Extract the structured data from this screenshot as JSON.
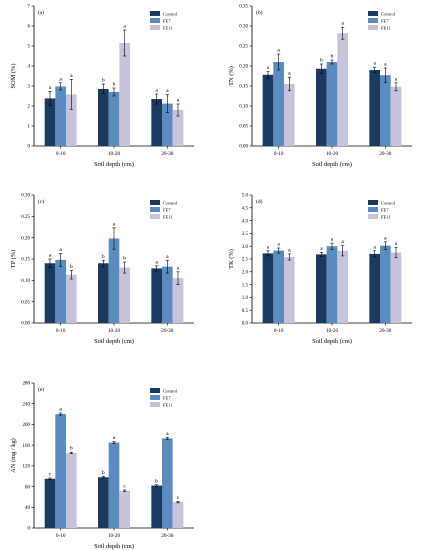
{
  "colors": [
    "#1b3a5f",
    "#5b8bbf",
    "#c7c3da"
  ],
  "chart_data": [
    {
      "type": "bar",
      "panel": "(a)",
      "xlabel": "Soil depth (cm)",
      "ylabel": "SOM (%)",
      "ylim": [
        0,
        7
      ],
      "yticks": [
        0,
        1,
        2,
        3,
        4,
        5,
        6,
        7
      ],
      "ytick_labels": [
        "0",
        "1",
        "2",
        "3",
        "4",
        "5",
        "6",
        "7"
      ],
      "categories": [
        "0-10",
        "10-20",
        "20-30"
      ],
      "legend": "top-right",
      "series": [
        {
          "name": "Control",
          "values": [
            2.38,
            2.85,
            2.35
          ],
          "errors": [
            0.35,
            0.25,
            0.25
          ],
          "letters": [
            "a",
            "b",
            "a"
          ]
        },
        {
          "name": "FE7",
          "values": [
            2.98,
            2.7,
            2.12
          ],
          "errors": [
            0.18,
            0.2,
            0.45
          ],
          "letters": [
            "a",
            "b",
            "a"
          ]
        },
        {
          "name": "FE11",
          "values": [
            2.58,
            5.15,
            1.8
          ],
          "errors": [
            0.75,
            0.65,
            0.3
          ],
          "letters": [
            "a",
            "a",
            "a"
          ]
        }
      ]
    },
    {
      "type": "bar",
      "panel": "(b)",
      "xlabel": "Soil depth (cm)",
      "ylabel": "TN (%)",
      "ylim": [
        0,
        0.35
      ],
      "yticks": [
        0,
        0.05,
        0.1,
        0.15,
        0.2,
        0.25,
        0.3,
        0.35
      ],
      "ytick_labels": [
        "0.00",
        "0.05",
        "0.10",
        "0.15",
        "0.20",
        "0.25",
        "0.30",
        "0.35"
      ],
      "categories": [
        "0-10",
        "10-20",
        "20-30"
      ],
      "legend": "top-right",
      "series": [
        {
          "name": "Control",
          "values": [
            0.178,
            0.193,
            0.19
          ],
          "errors": [
            0.008,
            0.012,
            0.007
          ],
          "letters": [
            "a",
            "b",
            "a"
          ]
        },
        {
          "name": "FE7",
          "values": [
            0.21,
            0.21,
            0.177
          ],
          "errors": [
            0.02,
            0.005,
            0.018
          ],
          "letters": [
            "a",
            "b",
            "a"
          ]
        },
        {
          "name": "FE11",
          "values": [
            0.155,
            0.282,
            0.148
          ],
          "errors": [
            0.017,
            0.015,
            0.01
          ],
          "letters": [
            "a",
            "a",
            "a"
          ]
        }
      ]
    },
    {
      "type": "bar",
      "panel": "(c)",
      "xlabel": "Soil depth (cm)",
      "ylabel": "TP (%)",
      "ylim": [
        0,
        0.3
      ],
      "yticks": [
        0,
        0.05,
        0.1,
        0.15,
        0.2,
        0.25,
        0.3
      ],
      "ytick_labels": [
        "0.00",
        "0.05",
        "0.10",
        "0.15",
        "0.20",
        "0.25",
        "0.30"
      ],
      "categories": [
        "0-10",
        "10-20",
        "20-30"
      ],
      "legend": "top-right",
      "series": [
        {
          "name": "Control",
          "values": [
            0.14,
            0.14,
            0.128
          ],
          "errors": [
            0.01,
            0.007,
            0.006
          ],
          "letters": [
            "a",
            "b",
            "a"
          ]
        },
        {
          "name": "FE7",
          "values": [
            0.148,
            0.198,
            0.132
          ],
          "errors": [
            0.015,
            0.025,
            0.015
          ],
          "letters": [
            "a",
            "a",
            "a"
          ]
        },
        {
          "name": "FE11",
          "values": [
            0.113,
            0.13,
            0.105
          ],
          "errors": [
            0.01,
            0.013,
            0.015
          ],
          "letters": [
            "b",
            "b",
            "a"
          ]
        }
      ]
    },
    {
      "type": "bar",
      "panel": "(d)",
      "xlabel": "Soil depth (cm)",
      "ylabel": "TK (%)",
      "ylim": [
        0,
        5
      ],
      "yticks": [
        0,
        0.5,
        1,
        1.5,
        2,
        2.5,
        3,
        3.5,
        4,
        4.5,
        5
      ],
      "ytick_labels": [
        "0.0",
        "0.5",
        "1.0",
        "1.5",
        "2.0",
        "2.5",
        "3.0",
        "3.5",
        "4.0",
        "4.5",
        "5.0"
      ],
      "categories": [
        "0-10",
        "10-20",
        "20-30"
      ],
      "legend": "top-right",
      "series": [
        {
          "name": "Control",
          "values": [
            2.72,
            2.68,
            2.7
          ],
          "errors": [
            0.1,
            0.08,
            0.12
          ],
          "letters": [
            "a",
            "a",
            "a"
          ]
        },
        {
          "name": "FE7",
          "values": [
            2.83,
            3.0,
            3.02
          ],
          "errors": [
            0.1,
            0.12,
            0.15
          ],
          "letters": [
            "a",
            "a",
            "a"
          ]
        },
        {
          "name": "FE11",
          "values": [
            2.58,
            2.82,
            2.75
          ],
          "errors": [
            0.12,
            0.2,
            0.2
          ],
          "letters": [
            "a",
            "a",
            "a"
          ]
        }
      ]
    },
    {
      "type": "bar",
      "panel": "(e)",
      "xlabel": "Soil depth (cm)",
      "ylabel": "AN (mg / kg)",
      "ylim": [
        0,
        280
      ],
      "yticks": [
        0,
        40,
        80,
        120,
        160,
        200,
        240,
        280
      ],
      "ytick_labels": [
        "0",
        "40",
        "80",
        "120",
        "160",
        "200",
        "240",
        "280"
      ],
      "categories": [
        "0-10",
        "10-20",
        "20-30"
      ],
      "legend": "top-right",
      "series": [
        {
          "name": "Control",
          "values": [
            95,
            98,
            82
          ],
          "errors": [
            1.5,
            1.5,
            1.5
          ],
          "letters": [
            "c",
            "b",
            "b"
          ]
        },
        {
          "name": "FE7",
          "values": [
            220,
            165,
            173
          ],
          "errors": [
            2,
            2,
            2
          ],
          "letters": [
            "a",
            "a",
            "a"
          ]
        },
        {
          "name": "FE11",
          "values": [
            145,
            72,
            50
          ],
          "errors": [
            1.5,
            1.5,
            1.5
          ],
          "letters": [
            "b",
            "c",
            "c"
          ]
        }
      ]
    }
  ]
}
